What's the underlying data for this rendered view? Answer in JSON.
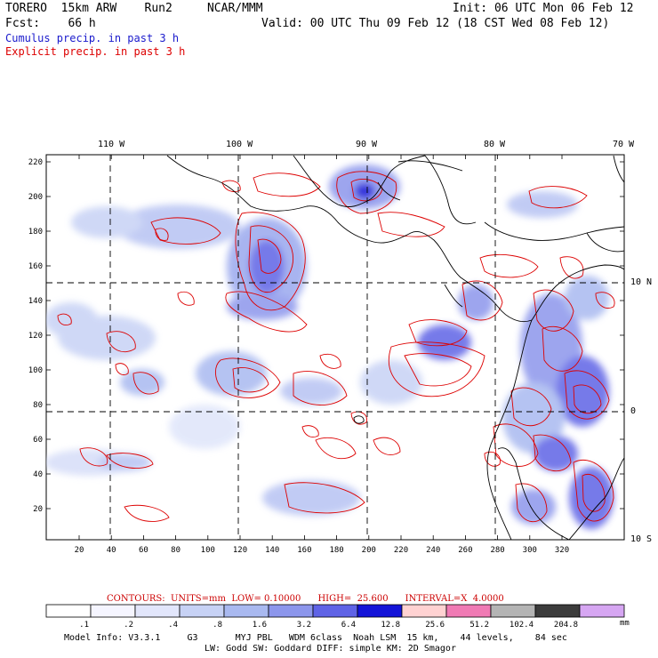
{
  "header": {
    "model_line": "TORERO  15km ARW    Run2     NCAR/MMM",
    "fcst_line": "Fcst:    66 h",
    "init_line": "Init: 06 UTC Mon 06 Feb 12",
    "valid_line": "Valid: 00 UTC Thu 09 Feb 12 (18 CST Wed 08 Feb 12)",
    "cumulus_label": "Cumulus precip. in past 3 h",
    "explicit_label": "Explicit precip. in past 3 h"
  },
  "colors": {
    "cumulus": "#1a1acc",
    "explicit": "#dd0000",
    "coast": "#000000"
  },
  "map": {
    "lon_labels": [
      "110 W",
      "100 W",
      "90 W",
      "80 W",
      "70 W"
    ],
    "lat_labels": [
      "10 N",
      "0",
      "10 S"
    ],
    "y_ticks": [
      "220",
      "200",
      "180",
      "160",
      "140",
      "120",
      "100",
      "80",
      "60",
      "40",
      "20"
    ],
    "x_ticks": [
      "20",
      "40",
      "60",
      "80",
      "100",
      "120",
      "140",
      "160",
      "180",
      "200",
      "220",
      "240",
      "260",
      "280",
      "300",
      "320"
    ]
  },
  "contours": {
    "text": "CONTOURS:  UNITS=mm  LOW= 0.10000      HIGH=  25.600      INTERVAL=X  4.0000"
  },
  "colorbar": {
    "labels": [
      ".1",
      ".2",
      ".4",
      ".8",
      "1.6",
      "3.2",
      "6.4",
      "12.8",
      "25.6",
      "51.2",
      "102.4",
      "204.8"
    ],
    "unit": "mm",
    "swatches": [
      "#ffffff",
      "#f5f5ff",
      "#e2e6fb",
      "#c7d2f5",
      "#a9b9f0",
      "#8c96ec",
      "#5f63e6",
      "#1414d8",
      "#ffd2d2",
      "#f07ab4",
      "#b4b4b4",
      "#3c3c3c",
      "#d6a6f2"
    ]
  },
  "footer": {
    "line1": "Model Info: V3.3.1     G3       MYJ PBL   WDM 6class  Noah LSM  15 km,    44 levels,    84 sec",
    "line2": "LW: Godd SW: Goddard DIFF: simple KM: 2D Smagor"
  }
}
